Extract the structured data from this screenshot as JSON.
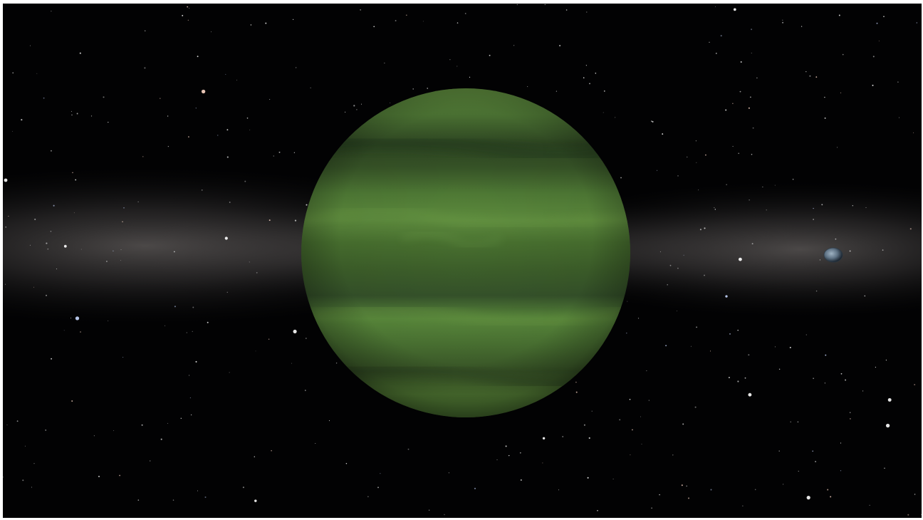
{
  "scene": {
    "view": "space-flight-view",
    "background": {
      "space_color": "#020203",
      "galactic_band_color": "#6e6a6a",
      "star_color": "#ffffff"
    },
    "planet": {
      "surface_color": "#4f7a34",
      "highlight_color": "#5e8e3c",
      "band_dark_color": "#2c4320",
      "band_light_color": "#638f3f",
      "terminator_color": "#1f3216",
      "shape": "banded gas giant"
    },
    "moon": {
      "surface_color": "#7d93a6",
      "shadow_color": "#1b2530"
    }
  }
}
